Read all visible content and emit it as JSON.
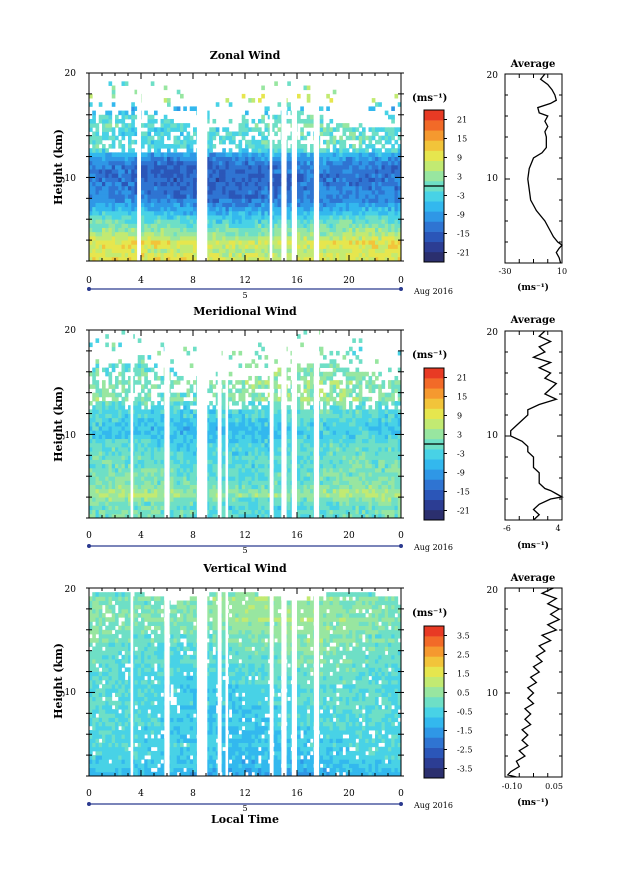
{
  "figure": {
    "date_label": "Aug 2016",
    "bottom_xlabel": "Local Time",
    "day_label": "5",
    "height_label": "Height (km)",
    "time_ticks": [
      "0",
      "4",
      "8",
      "12",
      "16",
      "20",
      "0"
    ],
    "height_ticks": [
      "10",
      "20"
    ]
  },
  "colorbar_palette": [
    "#2b2f6e",
    "#2c3d93",
    "#2b56b8",
    "#2f74d2",
    "#2f97e6",
    "#33b8ee",
    "#48d2e6",
    "#6edfc6",
    "#98e6a0",
    "#c2ea72",
    "#e6e64e",
    "#f2c43a",
    "#f5992f",
    "#f26a28",
    "#e83a24"
  ],
  "chart_data": [
    {
      "type": "heatmap",
      "title": "Zonal Wind",
      "xlabel": "",
      "ylabel": "Height (km)",
      "x_range": [
        0,
        24
      ],
      "y_range": [
        2,
        20
      ],
      "x_ticks": [
        "0",
        "4",
        "8",
        "12",
        "16",
        "20",
        "0"
      ],
      "y_ticks": [
        "10",
        "20"
      ],
      "units": "(ms⁻¹)",
      "colorbar_ticks": [
        "21",
        "15",
        "9",
        "3",
        "-3",
        "-9",
        "-15",
        "-21"
      ],
      "colorbar_range": [
        -24,
        24
      ],
      "zero_line": 0,
      "gaps_hours": [
        [
          3.7,
          4.0
        ],
        [
          8.3,
          9.1
        ],
        [
          13.9,
          14.1
        ],
        [
          14.8,
          15.2
        ],
        [
          15.6,
          16.0
        ],
        [
          17.3,
          17.7
        ]
      ],
      "profile": [
        {
          "h": 20.0,
          "v": -2
        },
        {
          "h": 19.5,
          "v": -5
        },
        {
          "h": 19.0,
          "v": 0
        },
        {
          "h": 18.5,
          "v": 3
        },
        {
          "h": 18.0,
          "v": 5
        },
        {
          "h": 17.5,
          "v": 6
        },
        {
          "h": 17.2,
          "v": 2
        },
        {
          "h": 16.8,
          "v": -7
        },
        {
          "h": 16.3,
          "v": -6
        },
        {
          "h": 16.0,
          "v": 0
        },
        {
          "h": 15.5,
          "v": -2
        },
        {
          "h": 15.0,
          "v": 0
        },
        {
          "h": 14.5,
          "v": -2
        },
        {
          "h": 14.0,
          "v": -1
        },
        {
          "h": 13.0,
          "v": -1
        },
        {
          "h": 12.5,
          "v": -4
        },
        {
          "h": 12.0,
          "v": -10
        },
        {
          "h": 11.0,
          "v": -13
        },
        {
          "h": 10.0,
          "v": -14
        },
        {
          "h": 9.0,
          "v": -13
        },
        {
          "h": 8.0,
          "v": -12
        },
        {
          "h": 7.5,
          "v": -10
        },
        {
          "h": 7.0,
          "v": -8
        },
        {
          "h": 6.0,
          "v": -2
        },
        {
          "h": 5.0,
          "v": 2
        },
        {
          "h": 4.5,
          "v": 4
        },
        {
          "h": 4.0,
          "v": 7
        },
        {
          "h": 3.7,
          "v": 10
        },
        {
          "h": 3.4,
          "v": 8
        },
        {
          "h": 3.0,
          "v": 6
        },
        {
          "h": 2.5,
          "v": 8
        },
        {
          "h": 2.0,
          "v": 9
        }
      ],
      "profile_title": "Average",
      "profile_xlabel": "(ms⁻¹)",
      "profile_x_range": [
        -30,
        10
      ],
      "profile_x_ticks": [
        "-30",
        "10"
      ],
      "profile_y_ticks": [
        "10",
        "20"
      ]
    },
    {
      "type": "heatmap",
      "title": "Meridional Wind",
      "xlabel": "",
      "ylabel": "Height (km)",
      "x_range": [
        0,
        24
      ],
      "y_range": [
        2,
        20
      ],
      "x_ticks": [
        "0",
        "4",
        "8",
        "12",
        "16",
        "20",
        "0"
      ],
      "y_ticks": [
        "10",
        "20"
      ],
      "units": "(ms⁻¹)",
      "colorbar_ticks": [
        "21",
        "15",
        "9",
        "3",
        "-3",
        "-9",
        "-15",
        "-21"
      ],
      "colorbar_range": [
        -24,
        24
      ],
      "zero_line": 0,
      "gaps_hours": [
        [
          3.2,
          3.4
        ],
        [
          5.8,
          6.2
        ],
        [
          8.3,
          9.1
        ],
        [
          9.9,
          10.2
        ],
        [
          10.5,
          10.7
        ],
        [
          13.9,
          14.2
        ],
        [
          14.8,
          15.2
        ],
        [
          15.6,
          16.0
        ],
        [
          17.3,
          17.7
        ]
      ],
      "profile": [
        {
          "h": 20.0,
          "v": 1
        },
        {
          "h": 19.5,
          "v": 0
        },
        {
          "h": 19.0,
          "v": 2
        },
        {
          "h": 18.5,
          "v": 0
        },
        {
          "h": 18.0,
          "v": 1
        },
        {
          "h": 17.5,
          "v": -1
        },
        {
          "h": 17.0,
          "v": 2
        },
        {
          "h": 16.5,
          "v": 0
        },
        {
          "h": 16.0,
          "v": 2
        },
        {
          "h": 15.5,
          "v": 1
        },
        {
          "h": 15.0,
          "v": 3
        },
        {
          "h": 14.0,
          "v": 1
        },
        {
          "h": 13.5,
          "v": 3
        },
        {
          "h": 13.0,
          "v": 0
        },
        {
          "h": 12.5,
          "v": -2
        },
        {
          "h": 12.0,
          "v": -2
        },
        {
          "h": 11.5,
          "v": -3
        },
        {
          "h": 11.0,
          "v": -4
        },
        {
          "h": 10.5,
          "v": -5
        },
        {
          "h": 10.0,
          "v": -5
        },
        {
          "h": 9.5,
          "v": -3
        },
        {
          "h": 9.0,
          "v": -2
        },
        {
          "h": 8.5,
          "v": -2
        },
        {
          "h": 8.0,
          "v": -1
        },
        {
          "h": 7.5,
          "v": -1
        },
        {
          "h": 7.0,
          "v": -1
        },
        {
          "h": 6.5,
          "v": 0
        },
        {
          "h": 6.0,
          "v": 0
        },
        {
          "h": 5.5,
          "v": 0
        },
        {
          "h": 5.0,
          "v": 1
        },
        {
          "h": 4.8,
          "v": 2
        },
        {
          "h": 4.5,
          "v": 3
        },
        {
          "h": 4.2,
          "v": 4
        },
        {
          "h": 4.0,
          "v": 2
        },
        {
          "h": 3.5,
          "v": 0
        },
        {
          "h": 3.0,
          "v": -1
        },
        {
          "h": 2.5,
          "v": 0
        },
        {
          "h": 2.0,
          "v": -1
        }
      ],
      "profile_title": "Average",
      "profile_xlabel": "(ms⁻¹)",
      "profile_x_range": [
        -6,
        4
      ],
      "profile_x_ticks": [
        "-6",
        "4"
      ],
      "profile_y_ticks": [
        "10",
        "20"
      ]
    },
    {
      "type": "heatmap",
      "title": "Vertical Wind",
      "xlabel": "Local Time",
      "ylabel": "Height (km)",
      "x_range": [
        0,
        24
      ],
      "y_range": [
        2,
        20
      ],
      "x_ticks": [
        "0",
        "4",
        "8",
        "12",
        "16",
        "20",
        "0"
      ],
      "y_ticks": [
        "10",
        "20"
      ],
      "units": "(ms⁻¹)",
      "colorbar_ticks": [
        "3.5",
        "2.5",
        "1.5",
        "0.5",
        "-0.5",
        "-1.5",
        "-2.5",
        "-3.5"
      ],
      "colorbar_range": [
        -4,
        4
      ],
      "zero_line": null,
      "gaps_hours": [
        [
          3.2,
          3.4
        ],
        [
          5.8,
          6.2
        ],
        [
          8.3,
          9.1
        ],
        [
          9.9,
          10.2
        ],
        [
          10.5,
          10.7
        ],
        [
          13.9,
          14.2
        ],
        [
          14.8,
          15.2
        ],
        [
          15.6,
          16.0
        ],
        [
          17.3,
          17.7
        ]
      ],
      "profile": [
        {
          "h": 20.0,
          "v": 0.04
        },
        {
          "h": 19.5,
          "v": 0.0
        },
        {
          "h": 19.0,
          "v": 0.05
        },
        {
          "h": 18.5,
          "v": 0.02
        },
        {
          "h": 18.0,
          "v": 0.06
        },
        {
          "h": 17.5,
          "v": 0.03
        },
        {
          "h": 17.0,
          "v": 0.06
        },
        {
          "h": 16.5,
          "v": 0.02
        },
        {
          "h": 16.0,
          "v": 0.05
        },
        {
          "h": 15.5,
          "v": 0.0
        },
        {
          "h": 15.0,
          "v": 0.03
        },
        {
          "h": 14.5,
          "v": -0.01
        },
        {
          "h": 14.0,
          "v": 0.01
        },
        {
          "h": 13.5,
          "v": -0.02
        },
        {
          "h": 13.0,
          "v": 0.0
        },
        {
          "h": 12.5,
          "v": -0.03
        },
        {
          "h": 12.0,
          "v": -0.01
        },
        {
          "h": 11.5,
          "v": -0.04
        },
        {
          "h": 11.0,
          "v": -0.02
        },
        {
          "h": 10.5,
          "v": -0.05
        },
        {
          "h": 10.0,
          "v": -0.03
        },
        {
          "h": 9.5,
          "v": -0.05
        },
        {
          "h": 9.0,
          "v": -0.03
        },
        {
          "h": 8.5,
          "v": -0.06
        },
        {
          "h": 8.0,
          "v": -0.04
        },
        {
          "h": 7.5,
          "v": -0.06
        },
        {
          "h": 7.0,
          "v": -0.04
        },
        {
          "h": 6.5,
          "v": -0.07
        },
        {
          "h": 6.0,
          "v": -0.05
        },
        {
          "h": 5.5,
          "v": -0.07
        },
        {
          "h": 5.0,
          "v": -0.05
        },
        {
          "h": 4.5,
          "v": -0.08
        },
        {
          "h": 4.0,
          "v": -0.06
        },
        {
          "h": 3.5,
          "v": -0.09
        },
        {
          "h": 3.0,
          "v": -0.08
        },
        {
          "h": 2.5,
          "v": -0.11
        },
        {
          "h": 2.2,
          "v": -0.12
        },
        {
          "h": 2.0,
          "v": -0.09
        }
      ],
      "profile_title": "Average",
      "profile_xlabel": "(ms⁻¹)",
      "profile_x_range": [
        -0.13,
        0.07
      ],
      "profile_x_ticks": [
        "-0.10",
        "0.05"
      ],
      "profile_y_ticks": [
        "10",
        "20"
      ]
    }
  ]
}
